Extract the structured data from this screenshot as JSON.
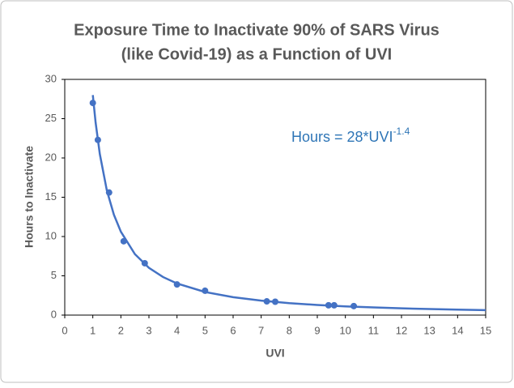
{
  "chart_data": {
    "type": "scatter",
    "title": [
      "Exposure Time to Inactivate 90% of SARS Virus",
      "(like Covid-19) as a Function of UVI"
    ],
    "x_label": "UVI",
    "y_label": "Hours to Inactivate",
    "annotation": {
      "text": "Hours = 28*UVI",
      "superscript": "-1.4",
      "color": "#2e75b6"
    },
    "xlim": [
      0,
      15
    ],
    "xticks": [
      0,
      1,
      2,
      3,
      4,
      5,
      6,
      7,
      8,
      9,
      10,
      11,
      12,
      13,
      14,
      15
    ],
    "ylim": [
      0,
      30
    ],
    "yticks": [
      0,
      5,
      10,
      15,
      20,
      25,
      30
    ],
    "grid": false,
    "points": {
      "color": "#4472c4",
      "x": [
        1,
        1.18,
        1.58,
        2.1,
        2.85,
        4,
        5,
        7.2,
        7.5,
        9.4,
        9.6,
        10.3
      ],
      "values": [
        27,
        22.3,
        15.6,
        9.4,
        6.6,
        3.9,
        3.1,
        1.75,
        1.7,
        1.25,
        1.25,
        1.15
      ]
    },
    "fit": {
      "color": "#4472c4",
      "x": [
        1,
        1.1,
        1.25,
        1.5,
        1.75,
        2,
        2.5,
        3,
        3.5,
        4,
        5,
        6,
        7,
        8,
        9,
        10,
        11,
        12,
        13,
        14,
        15
      ],
      "values": [
        28,
        24.5,
        20.49,
        15.87,
        12.79,
        10.61,
        7.76,
        6.01,
        4.85,
        4.02,
        2.94,
        2.28,
        1.84,
        1.52,
        1.29,
        1.11,
        0.98,
        0.86,
        0.77,
        0.7,
        0.63
      ]
    }
  }
}
